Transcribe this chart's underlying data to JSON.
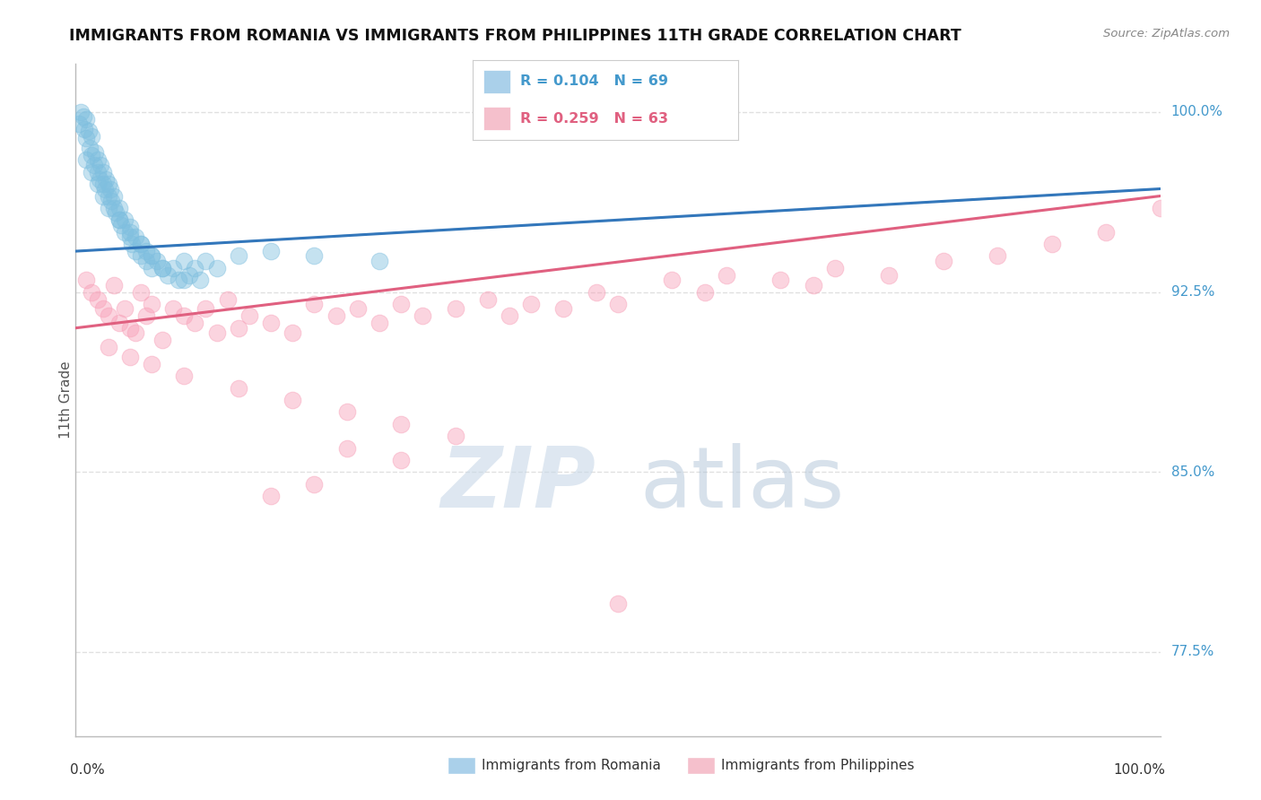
{
  "title": "IMMIGRANTS FROM ROMANIA VS IMMIGRANTS FROM PHILIPPINES 11TH GRADE CORRELATION CHART",
  "source": "Source: ZipAtlas.com",
  "ylabel": "11th Grade",
  "xlim": [
    0,
    100
  ],
  "ylim": [
    74,
    102
  ],
  "yticks": [
    77.5,
    85.0,
    92.5,
    100.0
  ],
  "romania_color": "#7fbfdf",
  "philippines_color": "#f8a0b8",
  "romania_R": 0.104,
  "romania_N": 69,
  "philippines_R": 0.259,
  "philippines_N": 63,
  "legend_label_romania": "Immigrants from Romania",
  "legend_label_philippines": "Immigrants from Philippines",
  "romania_trend_start_y": 94.2,
  "romania_trend_end_y": 96.8,
  "philippines_trend_start_y": 91.0,
  "philippines_trend_end_y": 96.5,
  "watermark_zip_color": "#c8d8e8",
  "watermark_atlas_color": "#b0c4d8",
  "background_color": "#ffffff",
  "grid_color": "#dddddd",
  "blue_text_color": "#4499cc",
  "pink_text_color": "#e06080"
}
